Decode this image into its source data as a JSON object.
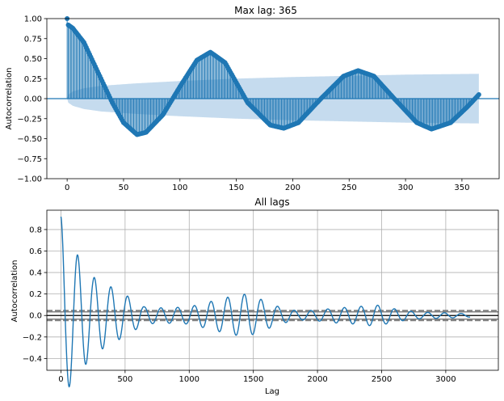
{
  "chart_data": [
    {
      "type": "line",
      "subtype": "acf-stem",
      "title": "Max lag: 365",
      "xlabel": "",
      "ylabel": "Autocorrelation",
      "xlim": [
        -18,
        383
      ],
      "ylim": [
        -1.0,
        1.0
      ],
      "xticks": [
        "0",
        "50",
        "100",
        "150",
        "200",
        "250",
        "300",
        "350"
      ],
      "xtick_values": [
        0,
        50,
        100,
        150,
        200,
        250,
        300,
        350
      ],
      "yticks": [
        "−1.00",
        "−0.75",
        "−0.50",
        "−0.25",
        "0.00",
        "0.25",
        "0.50",
        "0.75",
        "1.00"
      ],
      "ytick_values": [
        -1.0,
        -0.75,
        -0.5,
        -0.25,
        0.0,
        0.25,
        0.5,
        0.75,
        1.0
      ],
      "grid": false,
      "max_lag": 365,
      "acf_keypoints": [
        {
          "x": 0,
          "y": 1.0
        },
        {
          "x": 1,
          "y": 0.92
        },
        {
          "x": 5,
          "y": 0.88
        },
        {
          "x": 15,
          "y": 0.7
        },
        {
          "x": 30,
          "y": 0.25
        },
        {
          "x": 40,
          "y": -0.05
        },
        {
          "x": 50,
          "y": -0.3
        },
        {
          "x": 62,
          "y": -0.45
        },
        {
          "x": 70,
          "y": -0.42
        },
        {
          "x": 85,
          "y": -0.2
        },
        {
          "x": 100,
          "y": 0.15
        },
        {
          "x": 115,
          "y": 0.48
        },
        {
          "x": 127,
          "y": 0.58
        },
        {
          "x": 140,
          "y": 0.45
        },
        {
          "x": 160,
          "y": -0.05
        },
        {
          "x": 180,
          "y": -0.33
        },
        {
          "x": 192,
          "y": -0.37
        },
        {
          "x": 205,
          "y": -0.3
        },
        {
          "x": 225,
          "y": 0.0
        },
        {
          "x": 245,
          "y": 0.28
        },
        {
          "x": 258,
          "y": 0.35
        },
        {
          "x": 272,
          "y": 0.28
        },
        {
          "x": 290,
          "y": 0.0
        },
        {
          "x": 310,
          "y": -0.3
        },
        {
          "x": 323,
          "y": -0.38
        },
        {
          "x": 340,
          "y": -0.3
        },
        {
          "x": 355,
          "y": -0.1
        },
        {
          "x": 365,
          "y": 0.05
        }
      ],
      "confidence_band": [
        {
          "x": 0,
          "y": 0.0
        },
        {
          "x": 1,
          "y": 0.05
        },
        {
          "x": 5,
          "y": 0.09
        },
        {
          "x": 15,
          "y": 0.13
        },
        {
          "x": 30,
          "y": 0.16
        },
        {
          "x": 60,
          "y": 0.19
        },
        {
          "x": 100,
          "y": 0.22
        },
        {
          "x": 150,
          "y": 0.25
        },
        {
          "x": 200,
          "y": 0.27
        },
        {
          "x": 250,
          "y": 0.285
        },
        {
          "x": 300,
          "y": 0.3
        },
        {
          "x": 365,
          "y": 0.31
        }
      ],
      "colors": {
        "stem": "#1f77b4",
        "marker": "#1f77b4",
        "band": "#c5dbee",
        "zero_line": "#1f77b4"
      }
    },
    {
      "type": "line",
      "subtype": "autocorrelation-plot",
      "title": "All lags",
      "xlabel": "Lag",
      "ylabel": "Autocorrelation",
      "xlim": [
        -110,
        3410
      ],
      "ylim": [
        -0.51,
        0.98
      ],
      "xticks": [
        "0",
        "500",
        "1000",
        "1500",
        "2000",
        "2500",
        "3000"
      ],
      "xtick_values": [
        0,
        500,
        1000,
        1500,
        2000,
        2500,
        3000
      ],
      "yticks": [
        "−0.4",
        "−0.2",
        "0.0",
        "0.2",
        "0.4",
        "0.6",
        "0.8"
      ],
      "ytick_values": [
        -0.4,
        -0.2,
        0.0,
        0.2,
        0.4,
        0.6,
        0.8
      ],
      "grid": true,
      "reference_lines": {
        "zero": 0.0,
        "conf_95": [
          0.034,
          -0.034
        ],
        "conf_99": [
          0.045,
          -0.045
        ]
      },
      "envelope_keypoints": [
        {
          "x": 0,
          "a": 0.92,
          "p": 130
        },
        {
          "x": 40,
          "a": 0.7,
          "p": 130
        },
        {
          "x": 120,
          "a": 0.58,
          "p": 130
        },
        {
          "x": 250,
          "a": 0.36,
          "p": 130
        },
        {
          "x": 400,
          "a": 0.26,
          "p": 130
        },
        {
          "x": 520,
          "a": 0.18,
          "p": 130
        },
        {
          "x": 650,
          "a": 0.08,
          "p": 130
        },
        {
          "x": 800,
          "a": 0.07,
          "p": 130
        },
        {
          "x": 1000,
          "a": 0.08,
          "p": 130
        },
        {
          "x": 1200,
          "a": 0.14,
          "p": 130
        },
        {
          "x": 1300,
          "a": 0.17,
          "p": 130
        },
        {
          "x": 1440,
          "a": 0.2,
          "p": 130
        },
        {
          "x": 1560,
          "a": 0.15,
          "p": 130
        },
        {
          "x": 1700,
          "a": 0.08,
          "p": 130
        },
        {
          "x": 1850,
          "a": 0.04,
          "p": 130
        },
        {
          "x": 2000,
          "a": 0.05,
          "p": 130
        },
        {
          "x": 2150,
          "a": 0.07,
          "p": 130
        },
        {
          "x": 2300,
          "a": 0.08,
          "p": 130
        },
        {
          "x": 2450,
          "a": 0.1,
          "p": 130
        },
        {
          "x": 2530,
          "a": 0.08,
          "p": 130
        },
        {
          "x": 2650,
          "a": 0.05,
          "p": 130
        },
        {
          "x": 2800,
          "a": 0.03,
          "p": 130
        },
        {
          "x": 3000,
          "a": 0.025,
          "p": 130
        },
        {
          "x": 3190,
          "a": 0.015,
          "p": 130
        }
      ],
      "max_lag": 3190,
      "colors": {
        "line": "#1f77b4",
        "grid": "#b0b0b0",
        "ref_solid": "#000000",
        "ref_dashed": "#808080"
      }
    }
  ]
}
